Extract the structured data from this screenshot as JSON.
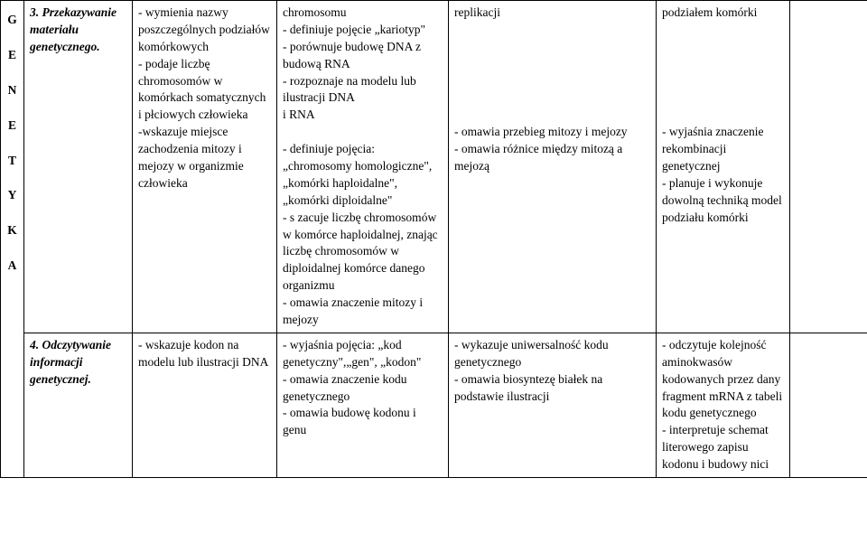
{
  "letters": [
    "G",
    "E",
    "N",
    "E",
    "T",
    "Y",
    "K",
    "A"
  ],
  "row1": {
    "topic": "3. Przekazywanie materiału genetycznego.",
    "a": "- wymienia nazwy poszczególnych podziałów komórkowych\n- podaje liczbę chromosomów w komórkach somatycznych i płciowych człowieka\n-wskazuje miejsce zachodzenia mitozy i mejozy w organizmie człowieka",
    "b": "chromosomu\n- definiuje pojęcie „kariotyp\"\n - porównuje budowę DNA z budową RNA\n- rozpoznaje na modelu lub ilustracji DNA\n    i RNA\n\n- definiuje pojęcia: „chromosomy homologiczne\", „komórki haploidalne\",„komórki diploidalne\"\n- s zacuje liczbę chromosomów w komórce haploidalnej, znając liczbę chromosomów w diploidalnej komórce danego organizmu\n- omawia znaczenie mitozy i mejozy",
    "c": "replikacji\n\n\n\n\n\n\n- omawia przebieg mitozy i mejozy\n- omawia różnice między mitozą a mejozą",
    "d": "podziałem komórki\n\n\n\n\n\n\n- wyjaśnia znaczenie rekombinacji genetycznej\n- planuje i wykonuje dowolną techniką model podziału komórki",
    "e": ""
  },
  "row2": {
    "topic": "4. Odczytywanie informacji genetycznej.",
    "a": "- wskazuje kodon na modelu lub ilustracji DNA",
    "b": "- wyjaśnia pojęcia: „kod genetyczny\",„gen\", „kodon\"\n- omawia znaczenie kodu genetycznego\n- omawia budowę kodonu i genu",
    "c": "- wykazuje uniwersalność kodu genetycznego\n- omawia biosyntezę białek na podstawie ilustracji",
    "d": "- odczytuje kolejność aminokwasów kodowanych przez dany fragment mRNA z tabeli kodu genetycznego\n- interpretuje schemat literowego zapisu kodonu i budowy nici",
    "e": ""
  }
}
